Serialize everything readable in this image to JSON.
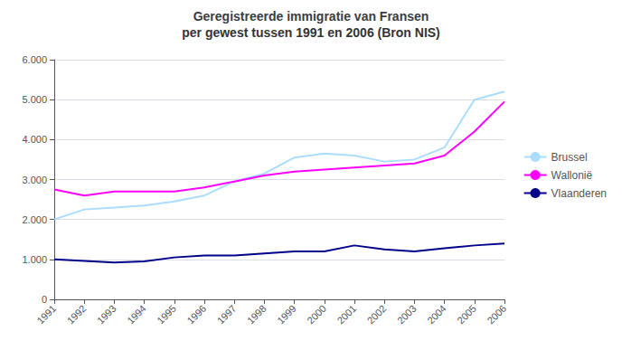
{
  "chart_data": {
    "type": "line",
    "title": "Geregistreerde immigratie van Fransen",
    "subtitle": "per gewest tussen 1991 en 2006 (Bron NIS)",
    "x": [
      1991,
      1992,
      1993,
      1994,
      1995,
      1996,
      1997,
      1998,
      1999,
      2000,
      2001,
      2002,
      2003,
      2004,
      2005,
      2006
    ],
    "series": [
      {
        "name": "Brussel",
        "color": "#aaddff",
        "values": [
          2000,
          2250,
          2300,
          2350,
          2450,
          2600,
          2950,
          3150,
          3550,
          3650,
          3600,
          3450,
          3500,
          3800,
          5000,
          5200
        ]
      },
      {
        "name": "Wallonië",
        "color": "#ff00ff",
        "values": [
          2750,
          2600,
          2700,
          2700,
          2700,
          2800,
          2950,
          3100,
          3200,
          3250,
          3300,
          3350,
          3400,
          3600,
          4200,
          4950
        ]
      },
      {
        "name": "Vlaanderen",
        "color": "#00008b",
        "values": [
          1000,
          960,
          920,
          950,
          1050,
          1100,
          1100,
          1150,
          1200,
          1200,
          1350,
          1250,
          1200,
          1280,
          1350,
          1400
        ]
      }
    ],
    "xlim": [
      1991,
      2006
    ],
    "xticks": [
      1991,
      1992,
      1993,
      1994,
      1995,
      1996,
      1997,
      1998,
      1999,
      2000,
      2001,
      2002,
      2003,
      2004,
      2005,
      2006
    ],
    "ylim": [
      0,
      6000
    ],
    "yticks": [
      0,
      {
        "value": 1000,
        "label": "1.000"
      },
      {
        "value": 2000,
        "label": "2.000"
      },
      {
        "value": 3000,
        "label": "3.000"
      },
      {
        "value": 4000,
        "label": "4.000"
      },
      {
        "value": 5000,
        "label": "5.000"
      },
      {
        "value": 6000,
        "label": "6.000"
      }
    ],
    "grid": true,
    "legend": "right"
  }
}
